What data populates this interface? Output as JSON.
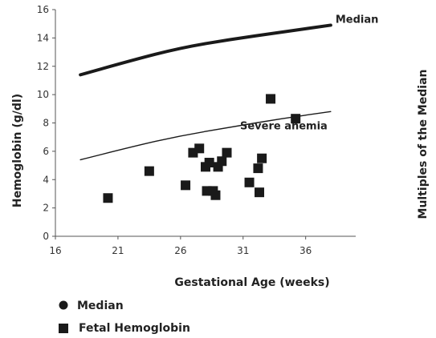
{
  "chart_data": {
    "type": "scatter",
    "title": "",
    "xlabel": "Gestational Age (weeks)",
    "ylabel": "Hemoglobin (g/dl)",
    "y2label": "Multiples of the Median",
    "xlim": [
      16,
      40
    ],
    "ylim": [
      0,
      16
    ],
    "xticks": [
      "16",
      "21",
      "26",
      "31",
      "36"
    ],
    "yticks": [
      "0",
      "2",
      "4",
      "6",
      "8",
      "10",
      "12",
      "14",
      "16"
    ],
    "grid": false,
    "curves": [
      {
        "name": "Median",
        "label": "Median",
        "style": "thick",
        "x": [
          18,
          22,
          26,
          30,
          34,
          38
        ],
        "y": [
          11.4,
          12.4,
          13.3,
          13.9,
          14.4,
          14.9
        ]
      },
      {
        "name": "Severe anemia",
        "label": "Severe anemia",
        "style": "thin",
        "x": [
          18,
          22,
          26,
          30,
          34,
          38
        ],
        "y": [
          5.4,
          6.3,
          7.1,
          7.7,
          8.3,
          8.8
        ]
      }
    ],
    "series": [
      {
        "name": "Fetal Hemoglobin",
        "marker": "square",
        "points": [
          [
            20.2,
            2.7
          ],
          [
            23.5,
            4.6
          ],
          [
            26.4,
            3.6
          ],
          [
            27.0,
            5.9
          ],
          [
            27.5,
            6.2
          ],
          [
            28.0,
            4.9
          ],
          [
            28.3,
            5.2
          ],
          [
            28.1,
            3.2
          ],
          [
            28.6,
            3.2
          ],
          [
            28.8,
            2.9
          ],
          [
            29.0,
            4.9
          ],
          [
            29.3,
            5.3
          ],
          [
            29.7,
            5.9
          ],
          [
            31.5,
            3.8
          ],
          [
            32.2,
            4.8
          ],
          [
            32.5,
            5.5
          ],
          [
            32.3,
            3.1
          ],
          [
            33.2,
            9.7
          ],
          [
            35.2,
            8.3
          ]
        ]
      }
    ],
    "legend": {
      "position": "bottom-left",
      "items": [
        {
          "label": "Median",
          "marker": "circle"
        },
        {
          "label": "Fetal Hemoglobin",
          "marker": "square"
        }
      ]
    },
    "colors": {
      "ink": "#1a1a1a",
      "text": "#222222"
    }
  }
}
